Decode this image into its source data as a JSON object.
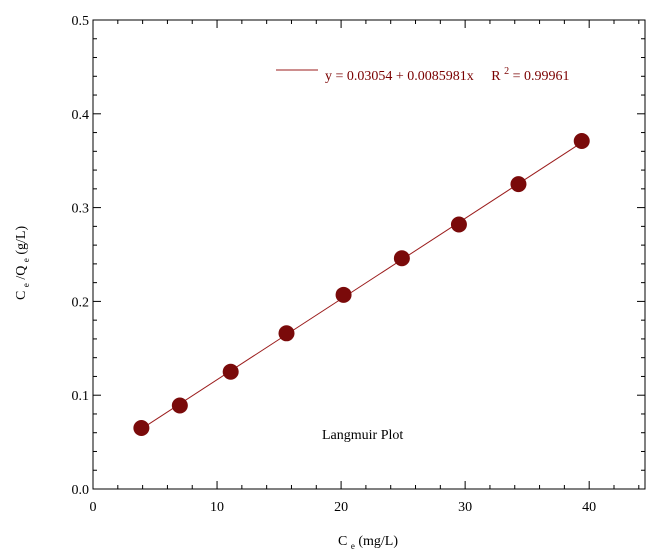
{
  "chart_data": {
    "type": "scatter",
    "x_ticks": [
      "0",
      "10",
      "20",
      "30",
      "40"
    ],
    "y_ticks": [
      "0.0",
      "0.1",
      "0.2",
      "0.3",
      "0.4",
      "0.5"
    ],
    "xlim": [
      0,
      44.5
    ],
    "ylim": [
      0,
      0.5
    ],
    "x_minor_step": 2,
    "y_minor_step": 0.02,
    "xlabel": {
      "main": "C",
      "sub": "e",
      "rest": " (mg/L)"
    },
    "ylabel": {
      "main1": "C",
      "sub1": "e",
      "main2": "/Q",
      "sub2": "e",
      "rest": " (g/L)"
    },
    "series": [
      {
        "x": [
          3.9,
          7.0,
          11.1,
          15.6,
          20.2,
          24.9,
          29.5,
          34.3,
          39.4
        ],
        "y": [
          0.065,
          0.089,
          0.125,
          0.166,
          0.207,
          0.246,
          0.282,
          0.325,
          0.371
        ],
        "color": "#7a0a0a"
      }
    ],
    "fit": {
      "intercept": 0.03054,
      "slope": 0.0085981,
      "x_range": [
        3.9,
        39.4
      ],
      "color": "#9b1c1c"
    },
    "legend": {
      "equation": "y = 0.03054 + 0.0085981x",
      "r2_label": "R",
      "r2_sup": "2",
      "r2_value": "= 0.99961",
      "placement": "top-right"
    },
    "annotation": "Langmuir Plot",
    "grid": false
  }
}
